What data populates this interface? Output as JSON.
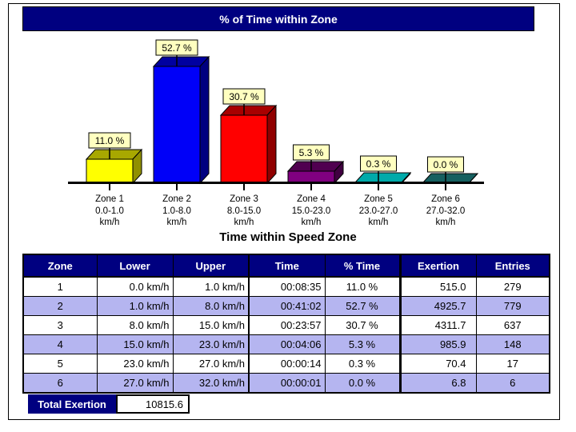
{
  "header": {
    "title": "% of Time within Zone"
  },
  "chart_data": {
    "type": "bar",
    "title": "% of Time within Zone",
    "xlabel_caption": "Time within Speed Zone",
    "ylim": [
      0,
      60
    ],
    "grid": false,
    "legend": "none",
    "categories": [
      {
        "zone": "Zone 1",
        "range": "0.0-1.0",
        "unit": "km/h"
      },
      {
        "zone": "Zone 2",
        "range": "1.0-8.0",
        "unit": "km/h"
      },
      {
        "zone": "Zone 3",
        "range": "8.0-15.0",
        "unit": "km/h"
      },
      {
        "zone": "Zone 4",
        "range": "15.0-23.0",
        "unit": "km/h"
      },
      {
        "zone": "Zone 5",
        "range": "23.0-27.0",
        "unit": "km/h"
      },
      {
        "zone": "Zone 6",
        "range": "27.0-32.0",
        "unit": "km/h"
      }
    ],
    "values": [
      11.0,
      52.7,
      30.7,
      5.3,
      0.3,
      0.0
    ],
    "value_labels": [
      "11.0 %",
      "52.7 %",
      "30.7 %",
      "5.3 %",
      "0.3 %",
      "0.0 %"
    ],
    "bar_colors": [
      {
        "front": "#FFFF00",
        "top": "#A8A800",
        "side": "#909000"
      },
      {
        "front": "#0000F8",
        "top": "#0000A0",
        "side": "#000080"
      },
      {
        "front": "#FF0000",
        "top": "#A80000",
        "side": "#900000"
      },
      {
        "front": "#800080",
        "top": "#500050",
        "side": "#400040"
      },
      {
        "front": "#00AAAA",
        "top": "#00AAAA",
        "side": "#008888"
      },
      {
        "front": "#166060",
        "top": "#166060",
        "side": "#104848"
      }
    ],
    "label_box_color": "#FFFFC0",
    "axis_color": "#000000"
  },
  "table": {
    "title": "Time within Speed Zone",
    "headers": [
      "Zone",
      "Lower",
      "Upper",
      "Time",
      "% Time",
      "Exertion",
      "Entries"
    ],
    "rows": [
      [
        "1",
        "0.0 km/h",
        "1.0 km/h",
        "00:08:35",
        "11.0 %",
        "515.0",
        "279"
      ],
      [
        "2",
        "1.0 km/h",
        "8.0 km/h",
        "00:41:02",
        "52.7 %",
        "4925.7",
        "779"
      ],
      [
        "3",
        "8.0 km/h",
        "15.0 km/h",
        "00:23:57",
        "30.7 %",
        "4311.7",
        "637"
      ],
      [
        "4",
        "15.0 km/h",
        "23.0 km/h",
        "00:04:06",
        "5.3 %",
        "985.9",
        "148"
      ],
      [
        "5",
        "23.0 km/h",
        "27.0 km/h",
        "00:00:14",
        "0.3 %",
        "70.4",
        "17"
      ],
      [
        "6",
        "27.0 km/h",
        "32.0 km/h",
        "00:00:01",
        "0.0 %",
        "6.8",
        "6"
      ]
    ]
  },
  "total": {
    "label": "Total Exertion",
    "value": "10815.6"
  },
  "colors": {
    "accent": "#000080",
    "row_stripe": "#B5B5F0",
    "label_box": "#FFFFC0"
  }
}
